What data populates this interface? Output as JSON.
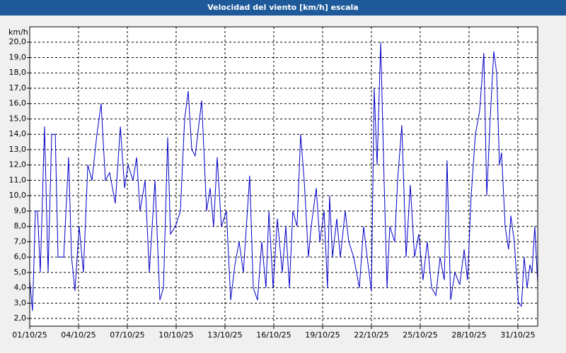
{
  "chart_data": {
    "type": "line",
    "title": "Velocidad del viento [km/h] escala",
    "ylabel": "km/h",
    "color": "#0000c8",
    "grid": true,
    "xlim": [
      0,
      31.22
    ],
    "ylim": [
      1.5,
      21
    ],
    "xticks": [
      {
        "value": 0,
        "label": "01/10/25"
      },
      {
        "value": 3,
        "label": "04/10/25"
      },
      {
        "value": 6,
        "label": "07/10/25"
      },
      {
        "value": 9,
        "label": "10/10/25"
      },
      {
        "value": 12,
        "label": "13/10/25"
      },
      {
        "value": 15,
        "label": "16/10/25"
      },
      {
        "value": 18,
        "label": "19/10/25"
      },
      {
        "value": 21,
        "label": "22/10/25"
      },
      {
        "value": 24,
        "label": "25/10/25"
      },
      {
        "value": 27,
        "label": "28/10/25"
      },
      {
        "value": 30,
        "label": "31/10/25"
      }
    ],
    "yticks": [
      {
        "value": 2,
        "label": "2,0"
      },
      {
        "value": 3,
        "label": "3,0"
      },
      {
        "value": 4,
        "label": "4,0"
      },
      {
        "value": 5,
        "label": "5,0"
      },
      {
        "value": 6,
        "label": "6,0"
      },
      {
        "value": 7,
        "label": "7,0"
      },
      {
        "value": 8,
        "label": "8,0"
      },
      {
        "value": 9,
        "label": "9,0"
      },
      {
        "value": 10,
        "label": "10,0"
      },
      {
        "value": 11,
        "label": "11,0"
      },
      {
        "value": 12,
        "label": "12,0"
      },
      {
        "value": 13,
        "label": "13,0"
      },
      {
        "value": 14,
        "label": "14,0"
      },
      {
        "value": 15,
        "label": "15,0"
      },
      {
        "value": 16,
        "label": "16,0"
      },
      {
        "value": 17,
        "label": "17,0"
      },
      {
        "value": 18,
        "label": "18,0"
      },
      {
        "value": 19,
        "label": "19,0"
      },
      {
        "value": 20,
        "label": "20,0"
      }
    ],
    "x": [
      0,
      0.17,
      0.35,
      0.48,
      0.65,
      0.91,
      1.13,
      1.35,
      1.57,
      1.74,
      2.09,
      2.39,
      2.57,
      2.78,
      3.04,
      3.3,
      3.57,
      3.83,
      4.13,
      4.39,
      4.65,
      4.91,
      5.26,
      5.57,
      5.83,
      6.04,
      6.35,
      6.57,
      6.78,
      7.09,
      7.35,
      7.7,
      8.0,
      8.22,
      8.48,
      8.65,
      8.96,
      9.26,
      9.52,
      9.74,
      9.96,
      10.17,
      10.57,
      10.87,
      11.09,
      11.3,
      11.52,
      11.78,
      12.09,
      12.35,
      12.61,
      12.87,
      13.13,
      13.52,
      13.74,
      14.0,
      14.26,
      14.52,
      14.7,
      14.96,
      15.22,
      15.52,
      15.74,
      15.96,
      16.17,
      16.43,
      16.65,
      16.87,
      17.13,
      17.3,
      17.61,
      17.83,
      18.09,
      18.3,
      18.43,
      18.61,
      18.87,
      19.09,
      19.39,
      19.61,
      19.91,
      20.26,
      20.52,
      20.74,
      21.0,
      21.17,
      21.35,
      21.57,
      21.78,
      21.96,
      22.13,
      22.43,
      22.61,
      22.87,
      23.13,
      23.39,
      23.65,
      23.91,
      24.17,
      24.43,
      24.7,
      24.96,
      25.22,
      25.48,
      25.65,
      25.87,
      26.13,
      26.43,
      26.7,
      26.91,
      27.13,
      27.39,
      27.65,
      27.91,
      28.09,
      28.3,
      28.52,
      28.7,
      28.87,
      29.0,
      29.22,
      29.43,
      29.57,
      29.78,
      30.04,
      30.22,
      30.39,
      30.57,
      30.74,
      30.87,
      31.04,
      31.22
    ],
    "values": [
      4.5,
      2.5,
      9,
      9,
      5,
      14.5,
      5,
      14,
      14,
      6,
      6,
      12.5,
      6,
      3.8,
      8,
      5,
      12,
      11,
      14,
      16,
      11,
      11.5,
      9.5,
      14.5,
      10.5,
      12,
      11,
      12.5,
      9,
      11,
      5,
      11,
      3.2,
      4,
      13.8,
      7.5,
      8,
      9,
      15,
      16.8,
      13,
      12.6,
      16.2,
      9,
      10.5,
      8,
      12.5,
      8,
      9,
      3.2,
      5.5,
      7,
      5,
      11.3,
      4,
      3.2,
      7,
      4,
      9,
      4,
      8.5,
      5,
      8,
      4,
      9,
      8,
      14,
      11,
      6,
      8,
      10.5,
      7,
      9,
      4,
      10,
      6,
      8.5,
      6,
      9,
      7,
      6,
      4,
      8,
      6,
      3.8,
      17,
      12,
      20,
      11,
      4,
      8,
      7,
      11,
      14.6,
      6,
      10.7,
      6,
      7.5,
      4.5,
      7,
      4,
      3.5,
      6,
      4.5,
      12.3,
      3.2,
      5,
      4.2,
      6.5,
      4.5,
      10,
      14,
      15.5,
      19.3,
      10,
      15,
      19.4,
      18,
      12,
      12.8,
      8,
      6.5,
      8.7,
      7,
      3,
      2.8,
      6,
      4,
      5.5,
      5,
      8,
      4.3
    ]
  }
}
